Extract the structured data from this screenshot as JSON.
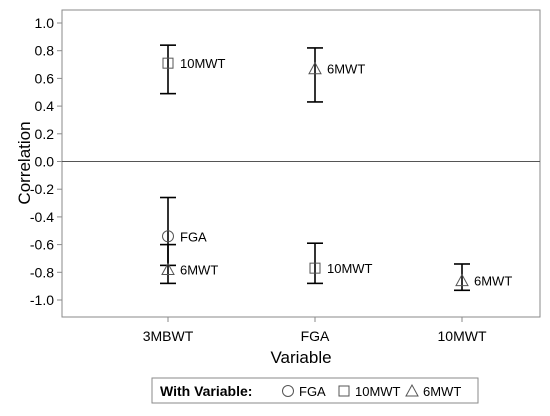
{
  "chart_data": {
    "type": "scatter",
    "xlabel": "Variable",
    "ylabel": "Correlation",
    "categories": [
      "3MBWT",
      "FGA",
      "10MWT"
    ],
    "ylim": [
      -1.0,
      1.0
    ],
    "yticks": [
      -1.0,
      -0.8,
      -0.6,
      -0.4,
      -0.2,
      0.0,
      0.2,
      0.4,
      0.6,
      0.8,
      1.0
    ],
    "ytick_labels": [
      "-1.0",
      "-0.8",
      "-0.6",
      "-0.4",
      "-0.2",
      "0.0",
      "0.2",
      "0.4",
      "0.6",
      "0.8",
      "1.0"
    ],
    "reference_line_y": 0.0,
    "legend": {
      "title": "With Variable:",
      "placement": "bottom",
      "entries": [
        {
          "name": "FGA",
          "marker": "circle"
        },
        {
          "name": "10MWT",
          "marker": "square"
        },
        {
          "name": "6MWT",
          "marker": "triangle"
        }
      ]
    },
    "points": [
      {
        "category": "3MBWT",
        "with": "10MWT",
        "marker": "square",
        "label": "10MWT",
        "value": 0.71,
        "lower": 0.49,
        "upper": 0.84
      },
      {
        "category": "3MBWT",
        "with": "FGA",
        "marker": "circle",
        "label": "FGA",
        "value": -0.54,
        "lower": -0.75,
        "upper": -0.26
      },
      {
        "category": "3MBWT",
        "with": "6MWT",
        "marker": "triangle",
        "label": "6MWT",
        "value": -0.78,
        "lower": -0.88,
        "upper": -0.6
      },
      {
        "category": "FGA",
        "with": "6MWT",
        "marker": "triangle",
        "label": "6MWT",
        "value": 0.67,
        "lower": 0.43,
        "upper": 0.82
      },
      {
        "category": "FGA",
        "with": "10MWT",
        "marker": "square",
        "label": "10MWT",
        "value": -0.77,
        "lower": -0.88,
        "upper": -0.59
      },
      {
        "category": "10MWT",
        "with": "6MWT",
        "marker": "triangle",
        "label": "6MWT",
        "value": -0.86,
        "lower": -0.93,
        "upper": -0.74
      }
    ]
  }
}
